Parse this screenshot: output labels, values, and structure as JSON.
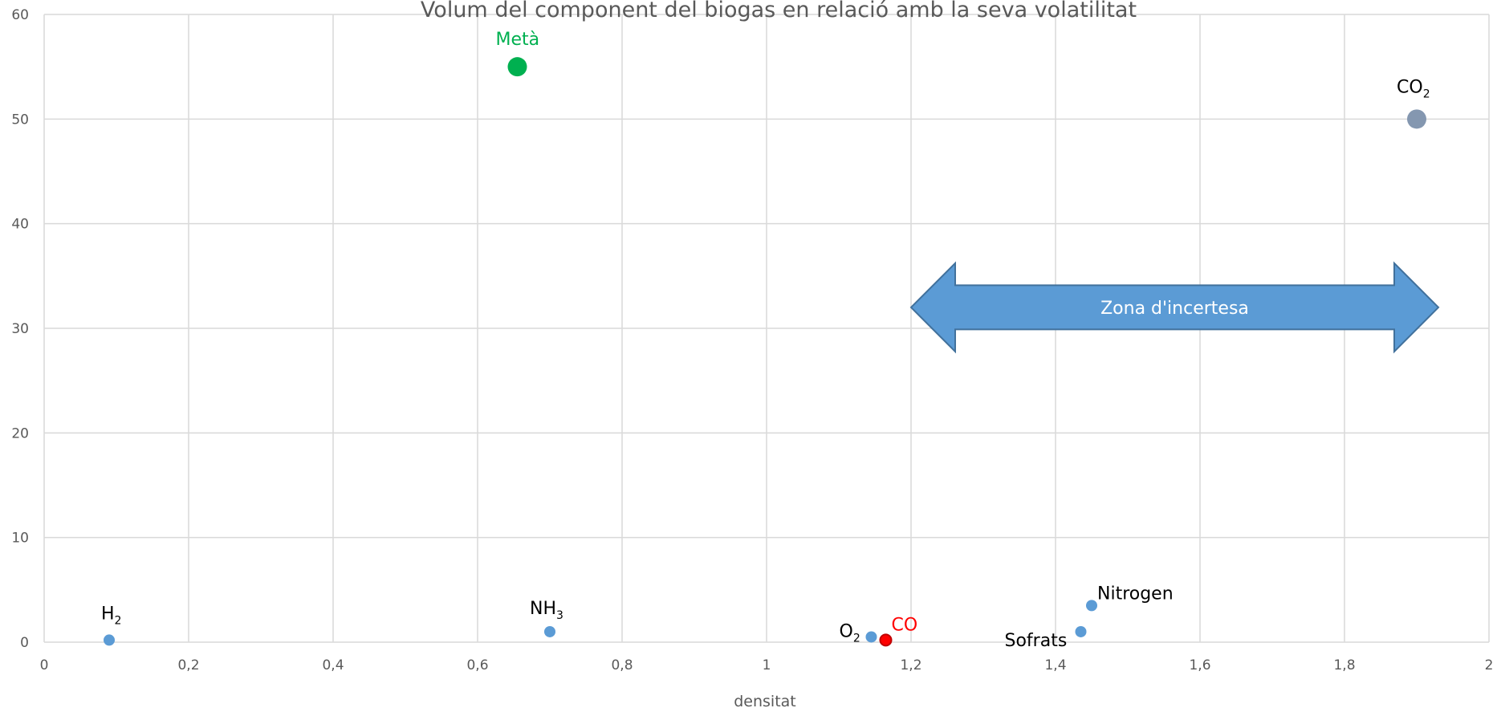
{
  "chart_data": {
    "type": "scatter",
    "title": "Volum del component del biogas en relació amb la seva volatilitat",
    "xlabel": "densitat",
    "ylabel": "",
    "xlim": [
      0,
      2
    ],
    "ylim": [
      0,
      60
    ],
    "x_ticks": [
      "0",
      "0,2",
      "0,4",
      "0,6",
      "0,8",
      "1",
      "1,2",
      "1,4",
      "1,6",
      "1,8",
      "2"
    ],
    "x_tick_values": [
      0,
      0.2,
      0.4,
      0.6,
      0.8,
      1.0,
      1.2,
      1.4,
      1.6,
      1.8,
      2.0
    ],
    "y_ticks": [
      "0",
      "10",
      "20",
      "30",
      "40",
      "50",
      "60"
    ],
    "y_tick_values": [
      0,
      10,
      20,
      30,
      40,
      50,
      60
    ],
    "grid": true,
    "points": [
      {
        "label": "H",
        "sub": "2",
        "x": 0.09,
        "y": 0.2,
        "color": "#5b9bd5",
        "label_color": "#000000",
        "size": "small"
      },
      {
        "label": "NH",
        "sub": "3",
        "x": 0.7,
        "y": 1.0,
        "color": "#5b9bd5",
        "label_color": "#000000",
        "size": "small"
      },
      {
        "label": "Metà",
        "sub": "",
        "x": 0.655,
        "y": 55,
        "color": "#00b050",
        "label_color": "#00b050",
        "size": "large"
      },
      {
        "label": "O",
        "sub": "2",
        "x": 1.145,
        "y": 0.5,
        "color": "#5b9bd5",
        "label_color": "#000000",
        "size": "small"
      },
      {
        "label": "CO",
        "sub": "",
        "x": 1.165,
        "y": 0.2,
        "color": "#ff0000",
        "label_color": "#ff0000",
        "size": "small"
      },
      {
        "label": "Sofrats",
        "sub": "",
        "x": 1.435,
        "y": 1.0,
        "color": "#5b9bd5",
        "label_color": "#000000",
        "size": "small"
      },
      {
        "label": "Nitrogen",
        "sub": "",
        "x": 1.45,
        "y": 3.5,
        "color": "#5b9bd5",
        "label_color": "#000000",
        "size": "small"
      },
      {
        "label": "CO",
        "sub": "2",
        "x": 1.9,
        "y": 50,
        "color": "#8497b0",
        "label_color": "#000000",
        "size": "large"
      }
    ],
    "annotation": {
      "text": "Zona d'incertesa",
      "x_start": 1.2,
      "x_end": 1.93,
      "y": 32,
      "color": "#5b9bd5",
      "shape": "double-arrow"
    }
  }
}
